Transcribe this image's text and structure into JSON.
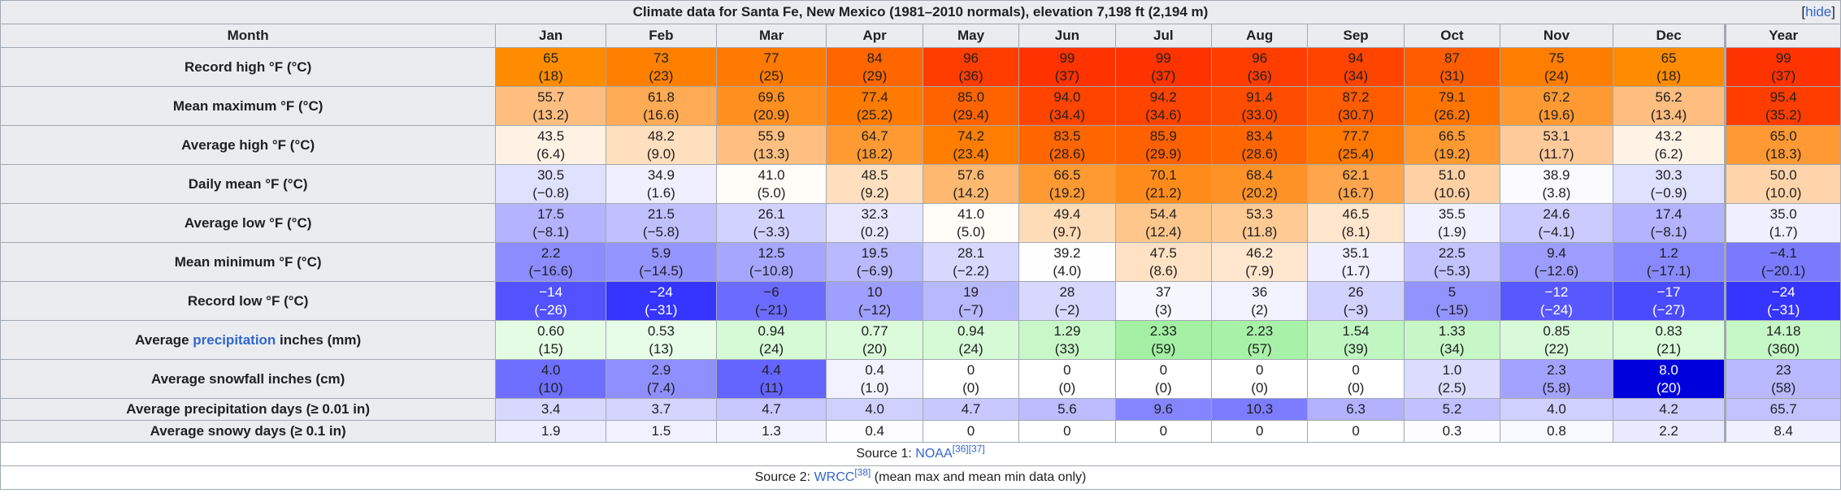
{
  "caption": "Climate data for Santa Fe, New Mexico (1981–2010 normals), elevation 7,198 ft (2,194 m)",
  "hide_label": "hide",
  "header": {
    "month": "Month",
    "months": [
      "Jan",
      "Feb",
      "Mar",
      "Apr",
      "May",
      "Jun",
      "Jul",
      "Aug",
      "Sep",
      "Oct",
      "Nov",
      "Dec"
    ],
    "year": "Year"
  },
  "rows": [
    {
      "label": "Record high °F (°C)",
      "label_prefix": "",
      "label_link": "",
      "label_suffix": "",
      "height": "tall",
      "cells": [
        {
          "v": "65",
          "s": "(18)",
          "bg": "#ff8c00"
        },
        {
          "v": "73",
          "s": "(23)",
          "bg": "#ff8000"
        },
        {
          "v": "77",
          "s": "(25)",
          "bg": "#ff7a00"
        },
        {
          "v": "84",
          "s": "(29)",
          "bg": "#ff6600"
        },
        {
          "v": "96",
          "s": "(36)",
          "bg": "#ff3d00"
        },
        {
          "v": "99",
          "s": "(37)",
          "bg": "#ff3300"
        },
        {
          "v": "99",
          "s": "(37)",
          "bg": "#ff3300"
        },
        {
          "v": "96",
          "s": "(36)",
          "bg": "#ff3d00"
        },
        {
          "v": "94",
          "s": "(34)",
          "bg": "#ff4400"
        },
        {
          "v": "87",
          "s": "(31)",
          "bg": "#ff5c00"
        },
        {
          "v": "75",
          "s": "(24)",
          "bg": "#ff7d00"
        },
        {
          "v": "65",
          "s": "(18)",
          "bg": "#ff8c00"
        }
      ],
      "year": {
        "v": "99",
        "s": "(37)",
        "bg": "#ff3300"
      }
    },
    {
      "label": "Mean maximum °F (°C)",
      "label_prefix": "",
      "label_link": "",
      "label_suffix": "",
      "height": "tall",
      "cells": [
        {
          "v": "55.7",
          "s": "(13.2)",
          "bg": "#ffbe80"
        },
        {
          "v": "61.8",
          "s": "(16.6)",
          "bg": "#ffaa55"
        },
        {
          "v": "69.6",
          "s": "(20.9)",
          "bg": "#ff8f1f"
        },
        {
          "v": "77.4",
          "s": "(25.2)",
          "bg": "#ff7a00"
        },
        {
          "v": "85.0",
          "s": "(29.4)",
          "bg": "#ff6300"
        },
        {
          "v": "94.0",
          "s": "(34.4)",
          "bg": "#ff4400"
        },
        {
          "v": "94.2",
          "s": "(34.6)",
          "bg": "#ff4400"
        },
        {
          "v": "91.4",
          "s": "(33.0)",
          "bg": "#ff4d00"
        },
        {
          "v": "87.2",
          "s": "(30.7)",
          "bg": "#ff5c00"
        },
        {
          "v": "79.1",
          "s": "(26.2)",
          "bg": "#ff7400"
        },
        {
          "v": "67.2",
          "s": "(19.6)",
          "bg": "#ff9a33"
        },
        {
          "v": "56.2",
          "s": "(13.4)",
          "bg": "#ffbd80"
        }
      ],
      "year": {
        "v": "95.4",
        "s": "(35.2)",
        "bg": "#ff3d00"
      }
    },
    {
      "label": "Average high °F (°C)",
      "label_prefix": "",
      "label_link": "",
      "label_suffix": "",
      "height": "tall",
      "cells": [
        {
          "v": "43.5",
          "s": "(6.4)",
          "bg": "#fff2e4"
        },
        {
          "v": "48.2",
          "s": "(9.0)",
          "bg": "#ffdfbd"
        },
        {
          "v": "55.9",
          "s": "(13.3)",
          "bg": "#ffbf80"
        },
        {
          "v": "64.7",
          "s": "(18.2)",
          "bg": "#ff9a33"
        },
        {
          "v": "74.2",
          "s": "(23.4)",
          "bg": "#ff7d00"
        },
        {
          "v": "83.5",
          "s": "(28.6)",
          "bg": "#ff6600"
        },
        {
          "v": "85.9",
          "s": "(29.9)",
          "bg": "#ff6000"
        },
        {
          "v": "83.4",
          "s": "(28.6)",
          "bg": "#ff6600"
        },
        {
          "v": "77.7",
          "s": "(25.4)",
          "bg": "#ff7800"
        },
        {
          "v": "66.5",
          "s": "(19.2)",
          "bg": "#ff9a33"
        },
        {
          "v": "53.1",
          "s": "(11.7)",
          "bg": "#ffca99"
        },
        {
          "v": "43.2",
          "s": "(6.2)",
          "bg": "#fff3e6"
        }
      ],
      "year": {
        "v": "65.0",
        "s": "(18.3)",
        "bg": "#ff9933"
      }
    },
    {
      "label": "Daily mean °F (°C)",
      "label_prefix": "",
      "label_link": "",
      "label_suffix": "",
      "height": "tall",
      "cells": [
        {
          "v": "30.5",
          "s": "(−0.8)",
          "bg": "#e0e0ff"
        },
        {
          "v": "34.9",
          "s": "(1.6)",
          "bg": "#efefff"
        },
        {
          "v": "41.0",
          "s": "(5.0)",
          "bg": "#fffbf7"
        },
        {
          "v": "48.5",
          "s": "(9.2)",
          "bg": "#ffdfbd"
        },
        {
          "v": "57.6",
          "s": "(14.2)",
          "bg": "#ffb870"
        },
        {
          "v": "66.5",
          "s": "(19.2)",
          "bg": "#ff9a33"
        },
        {
          "v": "70.1",
          "s": "(21.2)",
          "bg": "#ff8c1a"
        },
        {
          "v": "68.4",
          "s": "(20.2)",
          "bg": "#ff9226"
        },
        {
          "v": "62.1",
          "s": "(16.7)",
          "bg": "#ffa64d"
        },
        {
          "v": "51.0",
          "s": "(10.6)",
          "bg": "#ffd0a3"
        },
        {
          "v": "38.9",
          "s": "(3.8)",
          "bg": "#fbfbff"
        },
        {
          "v": "30.3",
          "s": "(−0.9)",
          "bg": "#e0e0ff"
        }
      ],
      "year": {
        "v": "50.0",
        "s": "(10.0)",
        "bg": "#ffd4aa"
      }
    },
    {
      "label": "Average low °F (°C)",
      "label_prefix": "",
      "label_link": "",
      "label_suffix": "",
      "height": "tall",
      "cells": [
        {
          "v": "17.5",
          "s": "(−8.1)",
          "bg": "#b3b3ff"
        },
        {
          "v": "21.5",
          "s": "(−5.8)",
          "bg": "#c0c0ff"
        },
        {
          "v": "26.1",
          "s": "(−3.3)",
          "bg": "#d2d2ff"
        },
        {
          "v": "32.3",
          "s": "(0.2)",
          "bg": "#e6e6ff"
        },
        {
          "v": "41.0",
          "s": "(5.0)",
          "bg": "#fffbf7"
        },
        {
          "v": "49.4",
          "s": "(9.7)",
          "bg": "#ffdcb8"
        },
        {
          "v": "54.4",
          "s": "(12.4)",
          "bg": "#ffc68c"
        },
        {
          "v": "53.3",
          "s": "(11.8)",
          "bg": "#ffca94"
        },
        {
          "v": "46.5",
          "s": "(8.1)",
          "bg": "#ffe6cc"
        },
        {
          "v": "35.5",
          "s": "(1.9)",
          "bg": "#f0f0ff"
        },
        {
          "v": "24.6",
          "s": "(−4.1)",
          "bg": "#cbcbff"
        },
        {
          "v": "17.4",
          "s": "(−8.1)",
          "bg": "#b3b3ff"
        }
      ],
      "year": {
        "v": "35.0",
        "s": "(1.7)",
        "bg": "#efefff"
      }
    },
    {
      "label": "Mean minimum °F (°C)",
      "label_prefix": "",
      "label_link": "",
      "label_suffix": "",
      "height": "tall",
      "cells": [
        {
          "v": "2.2",
          "s": "(−16.6)",
          "bg": "#8c8cff"
        },
        {
          "v": "5.9",
          "s": "(−14.5)",
          "bg": "#9595ff"
        },
        {
          "v": "12.5",
          "s": "(−10.8)",
          "bg": "#a6a6ff"
        },
        {
          "v": "19.5",
          "s": "(−6.9)",
          "bg": "#b9b9ff"
        },
        {
          "v": "28.1",
          "s": "(−2.2)",
          "bg": "#d8d8ff"
        },
        {
          "v": "39.2",
          "s": "(4.0)",
          "bg": "#fefeff"
        },
        {
          "v": "47.5",
          "s": "(8.6)",
          "bg": "#ffe2c4"
        },
        {
          "v": "46.2",
          "s": "(7.9)",
          "bg": "#ffe7cf"
        },
        {
          "v": "35.1",
          "s": "(1.7)",
          "bg": "#efefff"
        },
        {
          "v": "22.5",
          "s": "(−5.3)",
          "bg": "#c3c3ff"
        },
        {
          "v": "9.4",
          "s": "(−12.6)",
          "bg": "#9d9dff"
        },
        {
          "v": "1.2",
          "s": "(−17.1)",
          "bg": "#8989ff"
        }
      ],
      "year": {
        "v": "−4.1",
        "s": "(−20.1)",
        "bg": "#7a7aff"
      }
    },
    {
      "label": "Record low °F (°C)",
      "label_prefix": "",
      "label_link": "",
      "label_suffix": "",
      "height": "tall",
      "cells": [
        {
          "v": "−14",
          "s": "(−26)",
          "bg": "#5252ff",
          "w": true
        },
        {
          "v": "−24",
          "s": "(−31)",
          "bg": "#3535ff",
          "w": true
        },
        {
          "v": "−6",
          "s": "(−21)",
          "bg": "#6b6bff"
        },
        {
          "v": "10",
          "s": "(−12)",
          "bg": "#9f9fff"
        },
        {
          "v": "19",
          "s": "(−7)",
          "bg": "#b8b8ff"
        },
        {
          "v": "28",
          "s": "(−2)",
          "bg": "#d8d8ff"
        },
        {
          "v": "37",
          "s": "(3)",
          "bg": "#f6f6ff"
        },
        {
          "v": "36",
          "s": "(2)",
          "bg": "#f2f2ff"
        },
        {
          "v": "26",
          "s": "(−3)",
          "bg": "#d2d2ff"
        },
        {
          "v": "5",
          "s": "(−15)",
          "bg": "#9393ff"
        },
        {
          "v": "−12",
          "s": "(−24)",
          "bg": "#5858ff",
          "w": true
        },
        {
          "v": "−17",
          "s": "(−27)",
          "bg": "#4a4aff",
          "w": true
        }
      ],
      "year": {
        "v": "−24",
        "s": "(−31)",
        "bg": "#3535ff",
        "w": true
      }
    },
    {
      "label": "",
      "label_prefix": "Average ",
      "label_link": "precipitation",
      "label_suffix": " inches (mm)",
      "height": "tall",
      "cells": [
        {
          "v": "0.60",
          "s": "(15)",
          "bg": "#e3fce3"
        },
        {
          "v": "0.53",
          "s": "(13)",
          "bg": "#e7fde7"
        },
        {
          "v": "0.94",
          "s": "(24)",
          "bg": "#d6fad6"
        },
        {
          "v": "0.77",
          "s": "(20)",
          "bg": "#dbfbdb"
        },
        {
          "v": "0.94",
          "s": "(24)",
          "bg": "#d6fad6"
        },
        {
          "v": "1.29",
          "s": "(33)",
          "bg": "#c8f8c8"
        },
        {
          "v": "2.33",
          "s": "(59)",
          "bg": "#a4f0a4"
        },
        {
          "v": "2.23",
          "s": "(57)",
          "bg": "#a8f1a8"
        },
        {
          "v": "1.54",
          "s": "(39)",
          "bg": "#c0f6c0"
        },
        {
          "v": "1.33",
          "s": "(34)",
          "bg": "#c7f7c7"
        },
        {
          "v": "0.85",
          "s": "(22)",
          "bg": "#d8fad8"
        },
        {
          "v": "0.83",
          "s": "(21)",
          "bg": "#d9fbd9"
        }
      ],
      "year": {
        "v": "14.18",
        "s": "(360)",
        "bg": "#c6f7c6"
      }
    },
    {
      "label": "Average snowfall inches (cm)",
      "label_prefix": "",
      "label_link": "",
      "label_suffix": "",
      "height": "tall",
      "cells": [
        {
          "v": "4.0",
          "s": "(10)",
          "bg": "#6f6fff"
        },
        {
          "v": "2.9",
          "s": "(7.4)",
          "bg": "#8f8fff"
        },
        {
          "v": "4.4",
          "s": "(11)",
          "bg": "#6464ff"
        },
        {
          "v": "0.4",
          "s": "(1.0)",
          "bg": "#f2f2ff"
        },
        {
          "v": "0",
          "s": "(0)",
          "bg": "#ffffff"
        },
        {
          "v": "0",
          "s": "(0)",
          "bg": "#ffffff"
        },
        {
          "v": "0",
          "s": "(0)",
          "bg": "#ffffff"
        },
        {
          "v": "0",
          "s": "(0)",
          "bg": "#ffffff"
        },
        {
          "v": "0",
          "s": "(0)",
          "bg": "#ffffff"
        },
        {
          "v": "1.0",
          "s": "(2.5)",
          "bg": "#dcdcff"
        },
        {
          "v": "2.3",
          "s": "(5.8)",
          "bg": "#a3a3ff"
        },
        {
          "v": "8.0",
          "s": "(20)",
          "bg": "#0000dd",
          "w": true
        }
      ],
      "year": {
        "v": "23",
        "s": "(58)",
        "bg": "#b9b9ff"
      }
    },
    {
      "label": "Average precipitation days (≥ 0.01 in)",
      "label_prefix": "",
      "label_link": "",
      "label_suffix": "",
      "height": "short",
      "cells": [
        {
          "v": "3.4",
          "s": "",
          "bg": "#d8d8ff"
        },
        {
          "v": "3.7",
          "s": "",
          "bg": "#d4d4ff"
        },
        {
          "v": "4.7",
          "s": "",
          "bg": "#c8c8ff"
        },
        {
          "v": "4.0",
          "s": "",
          "bg": "#d0d0ff"
        },
        {
          "v": "4.7",
          "s": "",
          "bg": "#c8c8ff"
        },
        {
          "v": "5.6",
          "s": "",
          "bg": "#bcbcff"
        },
        {
          "v": "9.6",
          "s": "",
          "bg": "#8585ff"
        },
        {
          "v": "10.3",
          "s": "",
          "bg": "#7c7cff"
        },
        {
          "v": "6.3",
          "s": "",
          "bg": "#b2b2ff"
        },
        {
          "v": "5.2",
          "s": "",
          "bg": "#c1c1ff"
        },
        {
          "v": "4.0",
          "s": "",
          "bg": "#d0d0ff"
        },
        {
          "v": "4.2",
          "s": "",
          "bg": "#cdcdff"
        }
      ],
      "year": {
        "v": "65.7",
        "s": "",
        "bg": "#c2c2ff"
      }
    },
    {
      "label": "Average snowy days (≥ 0.1 in)",
      "label_prefix": "",
      "label_link": "",
      "label_suffix": "",
      "height": "short",
      "cells": [
        {
          "v": "1.9",
          "s": "",
          "bg": "#ededff"
        },
        {
          "v": "1.5",
          "s": "",
          "bg": "#f1f1ff"
        },
        {
          "v": "1.3",
          "s": "",
          "bg": "#f3f3ff"
        },
        {
          "v": "0.4",
          "s": "",
          "bg": "#fcfcff"
        },
        {
          "v": "0",
          "s": "",
          "bg": "#ffffff"
        },
        {
          "v": "0",
          "s": "",
          "bg": "#ffffff"
        },
        {
          "v": "0",
          "s": "",
          "bg": "#ffffff"
        },
        {
          "v": "0",
          "s": "",
          "bg": "#ffffff"
        },
        {
          "v": "0",
          "s": "",
          "bg": "#ffffff"
        },
        {
          "v": "0.3",
          "s": "",
          "bg": "#fdfdff"
        },
        {
          "v": "0.8",
          "s": "",
          "bg": "#f8f8ff"
        },
        {
          "v": "2.2",
          "s": "",
          "bg": "#eaeaff"
        }
      ],
      "year": {
        "v": "8.4",
        "s": "",
        "bg": "#f0f0ff"
      }
    }
  ],
  "sources": {
    "source1_prefix": "Source 1: ",
    "source1_link": "NOAA",
    "source1_refs": [
      "[36]",
      "[37]"
    ],
    "source1_suffix": "",
    "source2_prefix": "Source 2: ",
    "source2_link": "WRCC",
    "source2_refs": [
      "[38]"
    ],
    "source2_suffix": " (mean max and mean min data only)"
  }
}
